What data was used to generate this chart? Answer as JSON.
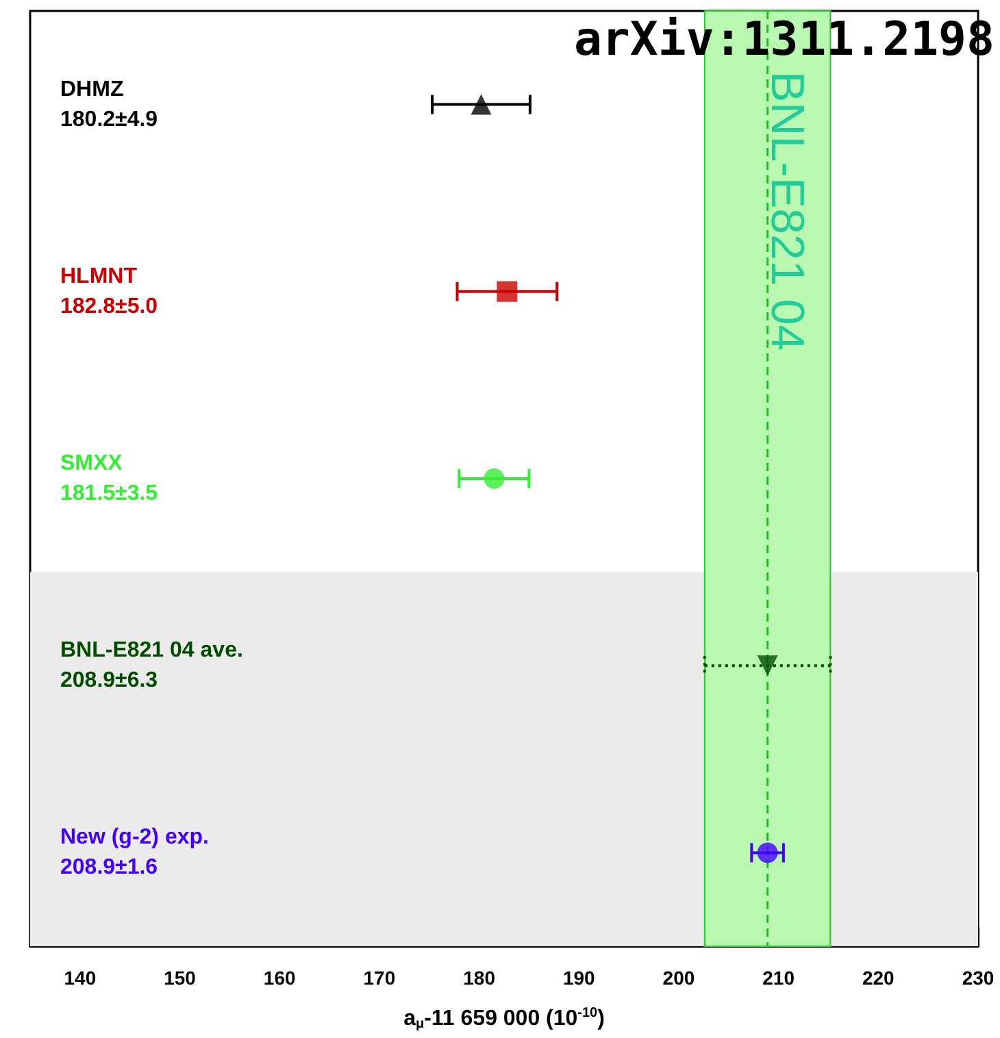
{
  "chart_data": {
    "type": "scatter",
    "orientation": "horizontal",
    "xlabel": "a$_{μ}$-11 659 000 (10$^{-10}$)",
    "categories": [
      "DHMZ",
      "HLMNT",
      "SMXX",
      "BNL-E821 04 ave.",
      "New (g-2) exp."
    ],
    "series": [
      {
        "color": "#000000",
        "marker": "triangle",
        "values": [
          180.2,
          null,
          null,
          null,
          null
        ],
        "errors": [
          4.9,
          null,
          null,
          null,
          null
        ]
      },
      {
        "color": "#cc0000",
        "marker": "square",
        "values": [
          null,
          182.8,
          null,
          null,
          null
        ],
        "errors": [
          null,
          5.0,
          null,
          null,
          null
        ]
      },
      {
        "color": "#33ee33",
        "marker": "circle",
        "values": [
          null,
          null,
          181.5,
          null,
          null
        ],
        "errors": [
          null,
          null,
          3.5,
          null,
          null
        ]
      },
      {
        "color": "#004d00",
        "marker": "triangle",
        "line_style": "dotted",
        "values": [
          null,
          null,
          null,
          208.9,
          null
        ],
        "errors": [
          null,
          null,
          null,
          6.3,
          null
        ]
      },
      {
        "color": "#4400ff",
        "marker": "circle",
        "values": [
          null,
          null,
          null,
          null,
          208.9
        ],
        "errors": [
          null,
          null,
          null,
          null,
          1.6
        ]
      }
    ],
    "xlim": [
      135,
      230
    ],
    "xticks": [
      140,
      150,
      160,
      170,
      180,
      190,
      200,
      210,
      220,
      230
    ],
    "grid": false,
    "bands": [
      {
        "axis": "y",
        "from": "BNL-E821 04 ave.",
        "to": "New (g-2) exp.",
        "color": "#ebebeb"
      },
      {
        "axis": "x",
        "from": 202.6,
        "to": 215.2,
        "color": "#b8f8b0",
        "label": "BNL-E821 04"
      }
    ],
    "ref_lines": [
      {
        "axis": "x",
        "value": 208.9,
        "color": "#22bb22",
        "line_style": "dashed"
      }
    ],
    "annotations": [
      "arXiv:1311.2198",
      "180.2±4.9",
      "182.8±5.0",
      "181.5±3.5",
      "208.9±6.3",
      "208.9±1.6"
    ]
  }
}
